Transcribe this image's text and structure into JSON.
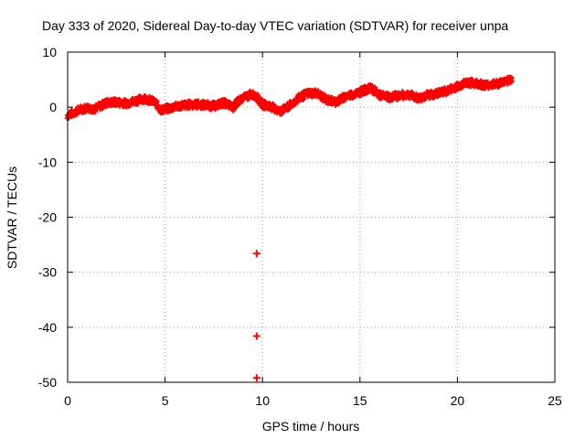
{
  "chart_data": {
    "type": "scatter",
    "title": "Day 333 of 2020, Sidereal Day-to-day VTEC variation (SDTVAR) for receiver unpa",
    "xlabel": "GPS time / hours",
    "ylabel": "SDTVAR / TECUs",
    "xlim": [
      0,
      25
    ],
    "ylim": [
      -50,
      10
    ],
    "x_ticks": [
      0,
      5,
      10,
      15,
      20,
      25
    ],
    "y_ticks": [
      10,
      0,
      -10,
      -20,
      -30,
      -40,
      -50
    ],
    "x_tick_labels": [
      "0",
      "5",
      "10",
      "15",
      "20",
      "25"
    ],
    "y_tick_labels": [
      "10",
      "0",
      "-10",
      "-20",
      "-30",
      "-40",
      "-50"
    ],
    "grid": true,
    "marker": "plus",
    "series": [
      {
        "name": "SDTVAR",
        "color": "#ff0000",
        "trend": [
          {
            "x": 0.0,
            "y": -1.5
          },
          {
            "x": 0.3,
            "y": -1.0
          },
          {
            "x": 0.6,
            "y": -0.5
          },
          {
            "x": 1.0,
            "y": -0.1
          },
          {
            "x": 1.4,
            "y": -0.3
          },
          {
            "x": 2.0,
            "y": 0.8
          },
          {
            "x": 2.5,
            "y": 0.9
          },
          {
            "x": 3.0,
            "y": 0.7
          },
          {
            "x": 3.5,
            "y": 1.2
          },
          {
            "x": 4.0,
            "y": 1.6
          },
          {
            "x": 4.5,
            "y": 0.8
          },
          {
            "x": 4.8,
            "y": -0.5
          },
          {
            "x": 5.2,
            "y": -0.2
          },
          {
            "x": 5.8,
            "y": 0.3
          },
          {
            "x": 6.5,
            "y": 0.5
          },
          {
            "x": 7.0,
            "y": 0.4
          },
          {
            "x": 7.5,
            "y": 0.2
          },
          {
            "x": 8.0,
            "y": 0.8
          },
          {
            "x": 8.5,
            "y": 0.0
          },
          {
            "x": 8.8,
            "y": 1.2
          },
          {
            "x": 9.3,
            "y": 2.2
          },
          {
            "x": 9.6,
            "y": 2.3
          },
          {
            "x": 10.0,
            "y": 0.5
          },
          {
            "x": 10.4,
            "y": 0.2
          },
          {
            "x": 10.9,
            "y": -0.8
          },
          {
            "x": 11.3,
            "y": 0.0
          },
          {
            "x": 11.8,
            "y": 1.5
          },
          {
            "x": 12.3,
            "y": 2.5
          },
          {
            "x": 12.8,
            "y": 2.6
          },
          {
            "x": 13.3,
            "y": 1.3
          },
          {
            "x": 13.8,
            "y": 1.0
          },
          {
            "x": 14.3,
            "y": 2.0
          },
          {
            "x": 14.8,
            "y": 2.5
          },
          {
            "x": 15.3,
            "y": 3.2
          },
          {
            "x": 15.6,
            "y": 3.4
          },
          {
            "x": 16.0,
            "y": 2.2
          },
          {
            "x": 16.5,
            "y": 1.8
          },
          {
            "x": 17.0,
            "y": 2.1
          },
          {
            "x": 17.5,
            "y": 2.3
          },
          {
            "x": 18.0,
            "y": 1.6
          },
          {
            "x": 18.5,
            "y": 2.2
          },
          {
            "x": 19.0,
            "y": 2.5
          },
          {
            "x": 19.5,
            "y": 3.0
          },
          {
            "x": 20.0,
            "y": 3.8
          },
          {
            "x": 20.5,
            "y": 4.5
          },
          {
            "x": 21.0,
            "y": 4.3
          },
          {
            "x": 21.5,
            "y": 4.0
          },
          {
            "x": 22.0,
            "y": 4.2
          },
          {
            "x": 22.5,
            "y": 4.8
          },
          {
            "x": 22.8,
            "y": 5.0
          }
        ],
        "outliers": [
          {
            "x": 9.7,
            "y": -26.6
          },
          {
            "x": 9.7,
            "y": -41.6
          },
          {
            "x": 9.7,
            "y": -49.2
          }
        ]
      }
    ]
  }
}
